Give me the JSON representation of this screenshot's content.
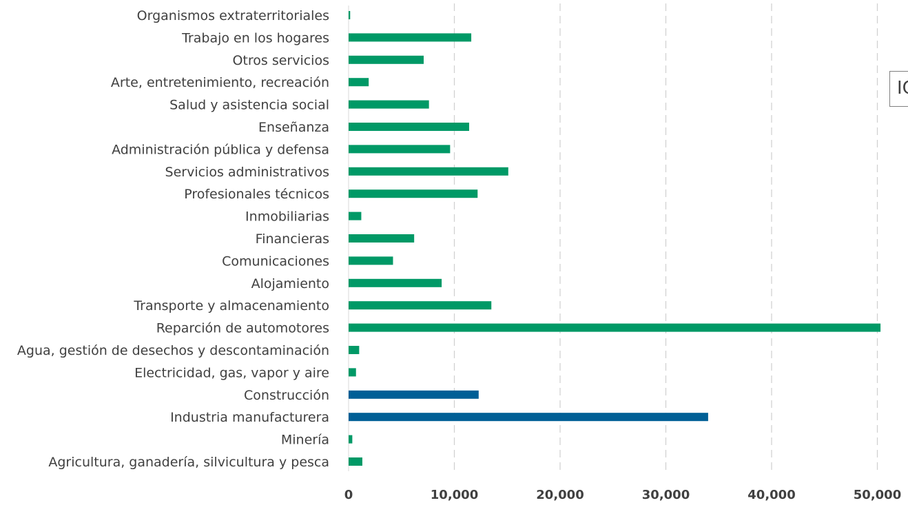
{
  "chart_data": {
    "type": "bar",
    "orientation": "horizontal",
    "categories": [
      "Agricultura, ganadería, silvicultura y pesca",
      "Minería",
      "Industria manufacturera",
      "Construcción",
      "Electricidad, gas, vapor y aire",
      "Agua, gestión de desechos y descontaminación",
      "Reparción de automotores",
      "Transporte y almacenamiento",
      "Alojamiento",
      "Comunicaciones",
      "Financieras",
      "Inmobiliarias",
      "Profesionales técnicos",
      "Servicios administrativos",
      "Administración pública y defensa",
      "Enseñanza",
      "Salud y asistencia social",
      "Arte, entretenimiento, recreación",
      "Otros servicios",
      "Trabajo en los hogares",
      "Organismos extraterritoriales"
    ],
    "values": [
      1300,
      350,
      34000,
      12300,
      700,
      1000,
      50300,
      13500,
      8800,
      4200,
      6200,
      1200,
      12200,
      15100,
      9600,
      11400,
      7600,
      1900,
      7100,
      11600,
      150
    ],
    "bar_colors": [
      "#009966",
      "#009966",
      "#005F96",
      "#005F96",
      "#009966",
      "#009966",
      "#009966",
      "#009966",
      "#009966",
      "#009966",
      "#009966",
      "#009966",
      "#009966",
      "#009966",
      "#009966",
      "#009966",
      "#009966",
      "#009966",
      "#009966",
      "#009966",
      "#009966"
    ],
    "xlim": [
      0,
      50000
    ],
    "xticks": [
      0,
      10000,
      20000,
      30000,
      40000,
      50000
    ],
    "xtick_labels": [
      "0",
      "10,000",
      "20,000",
      "30,000",
      "40,000",
      "50,000"
    ],
    "grid": "vertical dashed",
    "title": "",
    "xlabel": "",
    "ylabel": ""
  },
  "legend": {
    "text": "IC",
    "placement": "right, partially cut off"
  },
  "colors": {
    "green": "#009966",
    "blue": "#005F96",
    "grid": "#cfcfcf",
    "text": "#404040"
  }
}
